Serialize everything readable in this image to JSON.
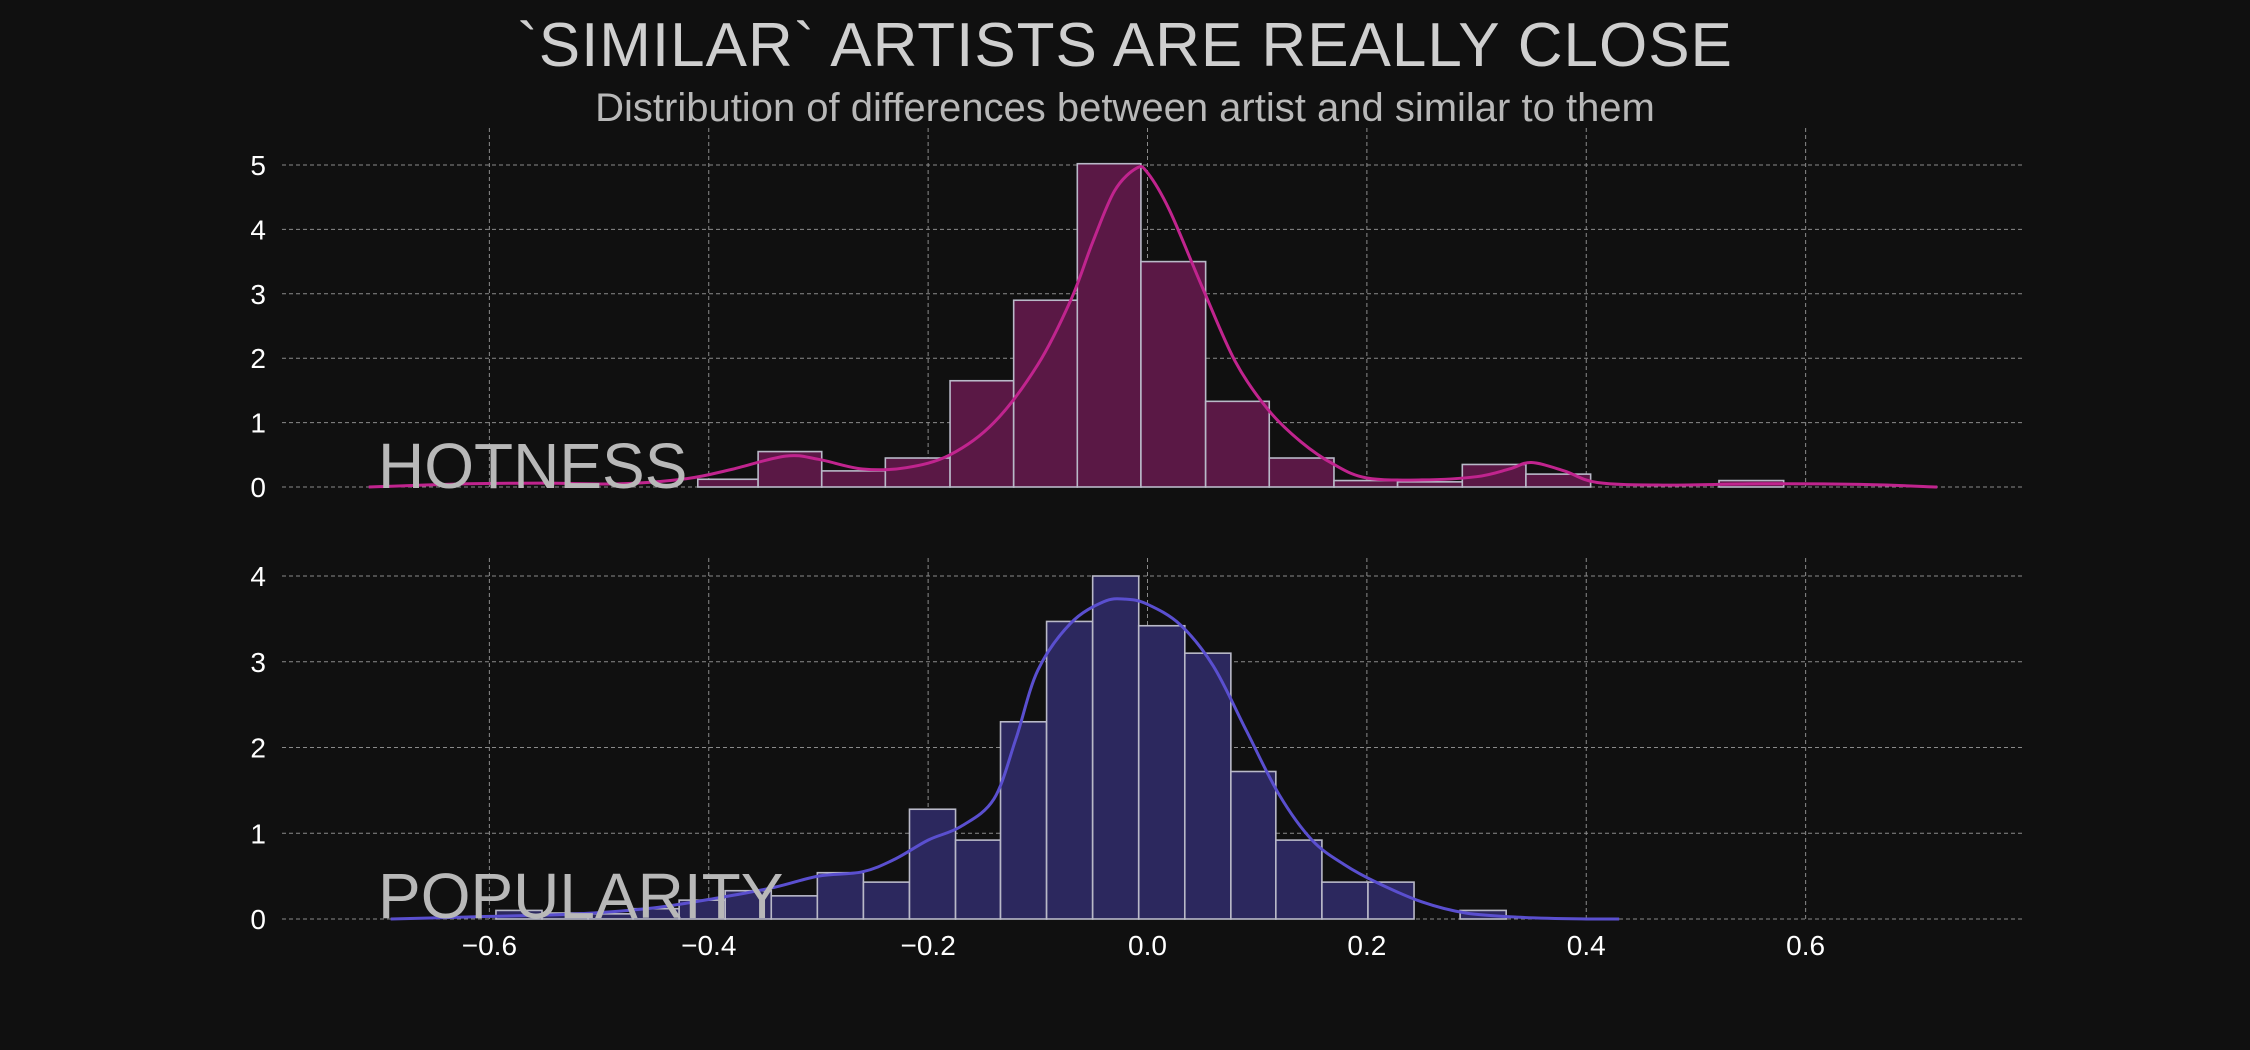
{
  "title": "`SIMILAR` ARTISTS ARE REALLY CLOSE",
  "subtitle": "Distribution of differences between artist and similar to them",
  "colors": {
    "background": "#101010",
    "hotness": "#c0248e",
    "hotness_fill": "#5a1845",
    "popularity": "#5a4fcf",
    "popularity_fill": "#2c285e",
    "edge": "#b9b9c8",
    "grid": "#8a8a8a",
    "text": "#ffffff",
    "label": "#b8b8b8"
  },
  "chart_data": [
    {
      "type": "bar",
      "name": "HOTNESS",
      "xlim": [
        -0.8,
        0.8
      ],
      "ylim": [
        0,
        5
      ],
      "y_ticks": [
        0,
        1,
        2,
        3,
        4,
        5
      ],
      "x_ticks": [
        -0.6,
        -0.4,
        -0.2,
        0.0,
        0.2,
        0.4,
        0.6
      ],
      "grid": true,
      "bins": [
        {
          "x0": -0.41,
          "x1": -0.355,
          "y": 0.12
        },
        {
          "x0": -0.355,
          "x1": -0.297,
          "y": 0.55
        },
        {
          "x0": -0.297,
          "x1": -0.239,
          "y": 0.25
        },
        {
          "x0": -0.239,
          "x1": -0.18,
          "y": 0.45
        },
        {
          "x0": -0.18,
          "x1": -0.122,
          "y": 1.65
        },
        {
          "x0": -0.122,
          "x1": -0.064,
          "y": 2.9
        },
        {
          "x0": -0.064,
          "x1": -0.006,
          "y": 5.02
        },
        {
          "x0": -0.006,
          "x1": 0.053,
          "y": 3.5
        },
        {
          "x0": 0.053,
          "x1": 0.111,
          "y": 1.33
        },
        {
          "x0": 0.111,
          "x1": 0.17,
          "y": 0.45
        },
        {
          "x0": 0.17,
          "x1": 0.228,
          "y": 0.1
        },
        {
          "x0": 0.228,
          "x1": 0.287,
          "y": 0.08
        },
        {
          "x0": 0.287,
          "x1": 0.345,
          "y": 0.35
        },
        {
          "x0": 0.345,
          "x1": 0.404,
          "y": 0.2
        },
        {
          "x0": 0.521,
          "x1": 0.58,
          "y": 0.1
        }
      ],
      "kde": [
        [
          -0.71,
          0.0
        ],
        [
          -0.62,
          0.05
        ],
        [
          -0.55,
          0.06
        ],
        [
          -0.48,
          0.05
        ],
        [
          -0.42,
          0.13
        ],
        [
          -0.38,
          0.27
        ],
        [
          -0.33,
          0.48
        ],
        [
          -0.3,
          0.43
        ],
        [
          -0.26,
          0.28
        ],
        [
          -0.22,
          0.3
        ],
        [
          -0.18,
          0.5
        ],
        [
          -0.14,
          1.0
        ],
        [
          -0.1,
          1.9
        ],
        [
          -0.07,
          2.9
        ],
        [
          -0.05,
          3.8
        ],
        [
          -0.03,
          4.6
        ],
        [
          -0.01,
          4.95
        ],
        [
          0.0,
          4.88
        ],
        [
          0.02,
          4.3
        ],
        [
          0.05,
          3.1
        ],
        [
          0.08,
          1.95
        ],
        [
          0.11,
          1.2
        ],
        [
          0.14,
          0.7
        ],
        [
          0.17,
          0.35
        ],
        [
          0.2,
          0.14
        ],
        [
          0.25,
          0.11
        ],
        [
          0.3,
          0.16
        ],
        [
          0.33,
          0.28
        ],
        [
          0.35,
          0.38
        ],
        [
          0.38,
          0.25
        ],
        [
          0.41,
          0.07
        ],
        [
          0.47,
          0.03
        ],
        [
          0.56,
          0.05
        ],
        [
          0.65,
          0.04
        ],
        [
          0.72,
          0.0
        ]
      ]
    },
    {
      "type": "bar",
      "name": "POPULARITY",
      "xlim": [
        -0.8,
        0.8
      ],
      "ylim": [
        0,
        4
      ],
      "y_ticks": [
        0,
        1,
        2,
        3,
        4
      ],
      "x_ticks": [
        -0.6,
        -0.4,
        -0.2,
        0.0,
        0.2,
        0.4,
        0.6
      ],
      "x_tick_labels": [
        "−0.6",
        "−0.4",
        "−0.2",
        "0.0",
        "0.2",
        "0.4",
        "0.6"
      ],
      "grid": true,
      "bins": [
        {
          "x0": -0.594,
          "x1": -0.552,
          "y": 0.1
        },
        {
          "x0": -0.552,
          "x1": -0.51,
          "y": 0.07
        },
        {
          "x0": -0.51,
          "x1": -0.469,
          "y": 0.06
        },
        {
          "x0": -0.469,
          "x1": -0.427,
          "y": 0.12
        },
        {
          "x0": -0.427,
          "x1": -0.385,
          "y": 0.22
        },
        {
          "x0": -0.385,
          "x1": -0.343,
          "y": 0.33
        },
        {
          "x0": -0.343,
          "x1": -0.301,
          "y": 0.27
        },
        {
          "x0": -0.301,
          "x1": -0.259,
          "y": 0.54
        },
        {
          "x0": -0.259,
          "x1": -0.217,
          "y": 0.43
        },
        {
          "x0": -0.217,
          "x1": -0.175,
          "y": 1.28
        },
        {
          "x0": -0.175,
          "x1": -0.134,
          "y": 0.92
        },
        {
          "x0": -0.134,
          "x1": -0.092,
          "y": 2.3
        },
        {
          "x0": -0.092,
          "x1": -0.05,
          "y": 3.47
        },
        {
          "x0": -0.05,
          "x1": -0.008,
          "y": 4.0
        },
        {
          "x0": -0.008,
          "x1": 0.034,
          "y": 3.42
        },
        {
          "x0": 0.034,
          "x1": 0.076,
          "y": 3.1
        },
        {
          "x0": 0.076,
          "x1": 0.117,
          "y": 1.72
        },
        {
          "x0": 0.117,
          "x1": 0.159,
          "y": 0.92
        },
        {
          "x0": 0.159,
          "x1": 0.201,
          "y": 0.43
        },
        {
          "x0": 0.201,
          "x1": 0.243,
          "y": 0.43
        },
        {
          "x0": 0.285,
          "x1": 0.327,
          "y": 0.1
        }
      ],
      "kde": [
        [
          -0.69,
          0.0
        ],
        [
          -0.6,
          0.03
        ],
        [
          -0.52,
          0.06
        ],
        [
          -0.45,
          0.13
        ],
        [
          -0.39,
          0.25
        ],
        [
          -0.34,
          0.37
        ],
        [
          -0.3,
          0.5
        ],
        [
          -0.26,
          0.55
        ],
        [
          -0.23,
          0.7
        ],
        [
          -0.2,
          0.92
        ],
        [
          -0.17,
          1.08
        ],
        [
          -0.14,
          1.4
        ],
        [
          -0.12,
          2.1
        ],
        [
          -0.1,
          2.9
        ],
        [
          -0.07,
          3.45
        ],
        [
          -0.04,
          3.7
        ],
        [
          -0.02,
          3.73
        ],
        [
          0.0,
          3.67
        ],
        [
          0.03,
          3.43
        ],
        [
          0.06,
          2.95
        ],
        [
          0.09,
          2.2
        ],
        [
          0.12,
          1.45
        ],
        [
          0.15,
          0.92
        ],
        [
          0.18,
          0.63
        ],
        [
          0.21,
          0.42
        ],
        [
          0.25,
          0.2
        ],
        [
          0.29,
          0.07
        ],
        [
          0.34,
          0.02
        ],
        [
          0.4,
          0.0
        ],
        [
          0.43,
          0.0
        ]
      ]
    }
  ]
}
